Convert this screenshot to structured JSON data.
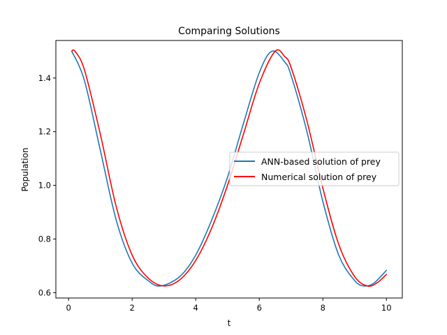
{
  "chart_data": {
    "type": "line",
    "title": "Comparing Solutions",
    "xlabel": "t",
    "ylabel": "Population",
    "xlim": [
      -0.4,
      10.5
    ],
    "ylim": [
      0.58,
      1.54
    ],
    "xticks": [
      0,
      2,
      4,
      6,
      8,
      10
    ],
    "xtick_labels": [
      "0",
      "2",
      "4",
      "6",
      "8",
      "10"
    ],
    "yticks": [
      0.6,
      0.8,
      1.0,
      1.2,
      1.4
    ],
    "ytick_labels": [
      "0.6",
      "0.8",
      "1.0",
      "1.2",
      "1.4"
    ],
    "grid": false,
    "legend_position": "center-right",
    "series": [
      {
        "name": "ANN-based solution of prey",
        "color": "#1f77b4",
        "x": [
          0.1,
          0.5,
          1.0,
          1.5,
          2.0,
          2.5,
          2.9,
          3.5,
          4.0,
          4.5,
          5.0,
          5.5,
          6.0,
          6.4,
          6.8,
          7.0,
          7.5,
          8.0,
          8.5,
          9.0,
          9.3,
          9.6,
          10.0
        ],
        "y": [
          1.5,
          1.39,
          1.13,
          0.87,
          0.71,
          0.645,
          0.625,
          0.66,
          0.74,
          0.87,
          1.03,
          1.23,
          1.42,
          1.5,
          1.46,
          1.41,
          1.2,
          0.94,
          0.74,
          0.645,
          0.625,
          0.635,
          0.683
        ]
      },
      {
        "name": "Numerical solution of prey",
        "color": "#ff0000",
        "x": [
          0.1,
          0.2,
          0.5,
          1.0,
          1.5,
          2.0,
          2.5,
          3.0,
          3.5,
          4.0,
          4.5,
          5.0,
          5.5,
          6.0,
          6.5,
          6.8,
          7.0,
          7.5,
          8.0,
          8.5,
          9.0,
          9.4,
          9.7,
          10.0
        ],
        "y": [
          1.5,
          1.5,
          1.43,
          1.19,
          0.92,
          0.74,
          0.655,
          0.625,
          0.648,
          0.72,
          0.84,
          1.0,
          1.19,
          1.38,
          1.5,
          1.48,
          1.44,
          1.24,
          0.99,
          0.78,
          0.66,
          0.625,
          0.636,
          0.668
        ]
      }
    ]
  }
}
